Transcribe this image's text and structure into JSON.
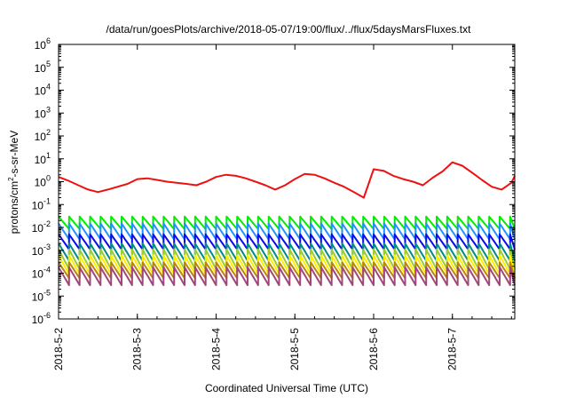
{
  "chart_data": {
    "type": "line",
    "title": "/data/run/goesPlots/archive/2018-05-07/19:00/flux/../flux/5daysMarsFluxes.txt",
    "xlabel": "Coordinated Universal Time (UTC)",
    "ylabel_parts": [
      "protons/cm",
      "2",
      "-s-sr-MeV"
    ],
    "yscale": "log",
    "ylim_exp": [
      -6,
      6
    ],
    "ytick_exponents": [
      -6,
      -5,
      -4,
      -3,
      -2,
      -1,
      0,
      1,
      2,
      3,
      4,
      5,
      6
    ],
    "ytick_base": "10",
    "xlim": [
      "2018-05-02T00:00",
      "2018-05-07T19:00"
    ],
    "xtick_labels": [
      "2018-5-2",
      "2018-5-3",
      "2018-5-4",
      "2018-5-5",
      "2018-5-6",
      "2018-5-7"
    ],
    "xtick_dates": [
      "2018-05-02",
      "2018-05-03",
      "2018-05-04",
      "2018-05-05",
      "2018-05-06",
      "2018-05-07"
    ],
    "grid": false,
    "legend": "none",
    "red_series": {
      "color": "#ee1111",
      "x": [
        "2018-05-02T00:00",
        "2018-05-02T03:00",
        "2018-05-02T06:00",
        "2018-05-02T09:00",
        "2018-05-02T12:00",
        "2018-05-02T15:00",
        "2018-05-02T18:00",
        "2018-05-02T21:00",
        "2018-05-03T00:00",
        "2018-05-03T03:00",
        "2018-05-03T06:00",
        "2018-05-03T09:00",
        "2018-05-03T12:00",
        "2018-05-03T15:00",
        "2018-05-03T18:00",
        "2018-05-03T21:00",
        "2018-05-04T00:00",
        "2018-05-04T03:00",
        "2018-05-04T06:00",
        "2018-05-04T09:00",
        "2018-05-04T12:00",
        "2018-05-04T15:00",
        "2018-05-04T18:00",
        "2018-05-04T21:00",
        "2018-05-05T00:00",
        "2018-05-05T03:00",
        "2018-05-05T06:00",
        "2018-05-05T09:00",
        "2018-05-05T12:00",
        "2018-05-05T15:00",
        "2018-05-05T18:00",
        "2018-05-05T21:00",
        "2018-05-06T00:00",
        "2018-05-06T03:00",
        "2018-05-06T06:00",
        "2018-05-06T09:00",
        "2018-05-06T12:00",
        "2018-05-06T15:00",
        "2018-05-06T18:00",
        "2018-05-06T21:00",
        "2018-05-07T00:00",
        "2018-05-07T03:00",
        "2018-05-07T06:00",
        "2018-05-07T09:00",
        "2018-05-07T12:00",
        "2018-05-07T15:00",
        "2018-05-07T18:00",
        "2018-05-07T19:00"
      ],
      "y": [
        1.6,
        1.1,
        0.7,
        0.45,
        0.35,
        0.45,
        0.6,
        0.8,
        1.3,
        1.4,
        1.2,
        1.0,
        0.9,
        0.8,
        0.7,
        1.0,
        1.6,
        2.0,
        1.8,
        1.4,
        1.0,
        0.7,
        0.45,
        0.7,
        1.3,
        2.2,
        2.0,
        1.4,
        0.9,
        0.6,
        0.35,
        0.2,
        3.5,
        3.0,
        1.8,
        1.3,
        1.0,
        0.7,
        1.5,
        2.8,
        7.0,
        5.0,
        2.5,
        1.2,
        0.6,
        0.45,
        0.9,
        1.8
      ]
    },
    "periodic_series": [
      {
        "color": "#00ee00",
        "high": 0.03,
        "low": 0.0085
      },
      {
        "color": "#1e90ff",
        "high": 0.015,
        "low": 0.003
      },
      {
        "color": "#0a0aee",
        "high": 0.005,
        "low": 0.0011
      },
      {
        "color": "#008b8b",
        "high": 0.002,
        "low": 0.00035
      },
      {
        "color": "#9acd32",
        "high": 0.0011,
        "low": 0.00015
      },
      {
        "color": "#ffee00",
        "high": 0.0006,
        "low": 9e-05
      },
      {
        "color": "#b8860b",
        "high": 0.0003,
        "low": 6e-05
      },
      {
        "color": "#a0467a",
        "high": 0.00018,
        "low": 3e-05
      }
    ],
    "cycle_hours": 3.2
  }
}
